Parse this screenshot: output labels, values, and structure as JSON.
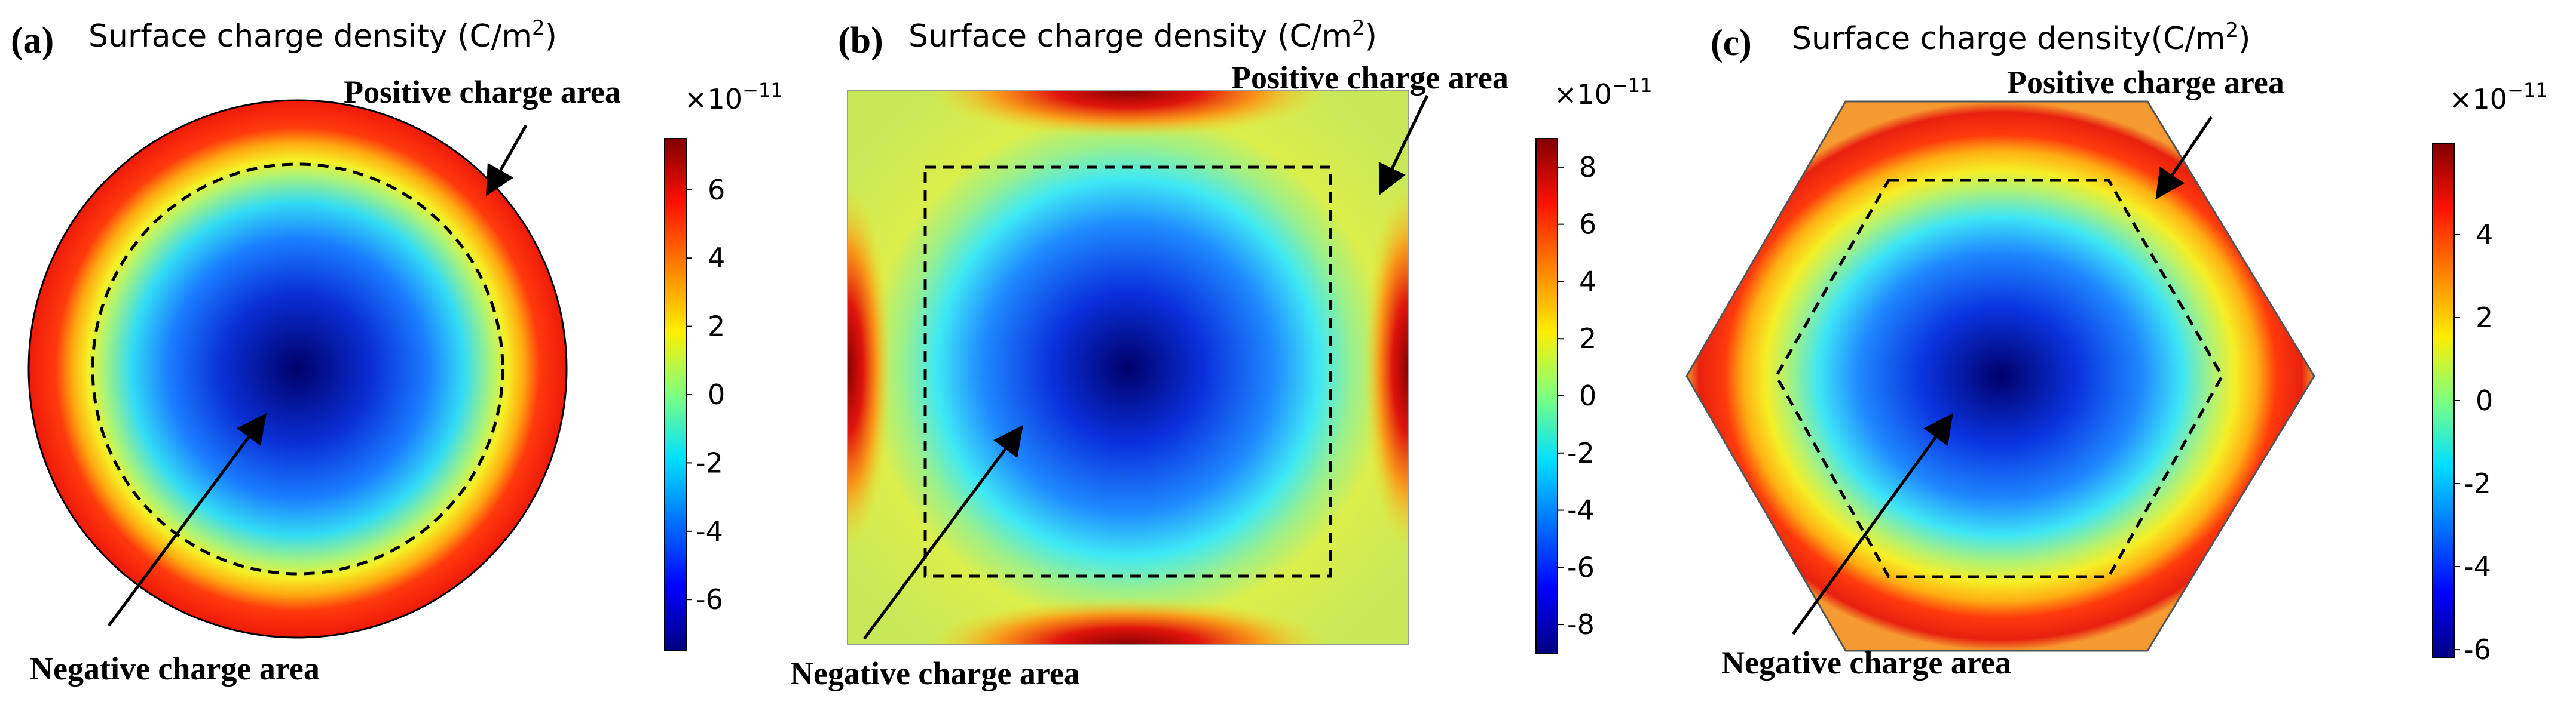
{
  "colors": {
    "jet": [
      "#00007f",
      "#0000ff",
      "#0080ff",
      "#00ffff",
      "#80ff80",
      "#ffff00",
      "#ff8000",
      "#ff0000",
      "#7f0000"
    ],
    "field_center": "#00007f",
    "field_mid": "#2f6fff",
    "field_cyan": "#3ff0ff",
    "field_edge_yellow": "#e6ee3a",
    "field_edge_red": "#e8200f",
    "outline": "#000000",
    "dash": "#000000"
  },
  "panels": [
    {
      "id": "a",
      "label": "(a)",
      "title": "Surface charge density (C/m",
      "title_sup": "2",
      "title_close": ")",
      "positive_label": "Positive charge   area",
      "negative_label": "Negative charge   area",
      "shape": "circle",
      "colorbar": {
        "exponent_base": "×10",
        "exponent_power": "−11",
        "ticks": [
          "6",
          "4",
          "2",
          "0",
          "-2",
          "-4",
          "-6"
        ],
        "range": [
          -7.5,
          7.5
        ]
      }
    },
    {
      "id": "b",
      "label": "(b)",
      "title": "Surface charge density (C/m",
      "title_sup": "2",
      "title_close": ")",
      "positive_label": "Positive charge   area",
      "negative_label": "Negative charge   area",
      "shape": "square",
      "colorbar": {
        "exponent_base": "×10",
        "exponent_power": "−11",
        "ticks": [
          "8",
          "6",
          "4",
          "2",
          "0",
          "-2",
          "-4",
          "-6",
          "-8"
        ],
        "range": [
          -9,
          9
        ]
      }
    },
    {
      "id": "c",
      "label": "(c)",
      "title": "Surface charge density(C/m",
      "title_sup": "2",
      "title_close": ")",
      "positive_label": "Positive charge   area",
      "negative_label": "Negative charge   area",
      "shape": "hexagon",
      "colorbar": {
        "exponent_base": "×10",
        "exponent_power": "−11",
        "ticks": [
          "4",
          "2",
          "0",
          "-2",
          "-4",
          "-6"
        ],
        "range": [
          -6.2,
          6.2
        ]
      }
    }
  ]
}
